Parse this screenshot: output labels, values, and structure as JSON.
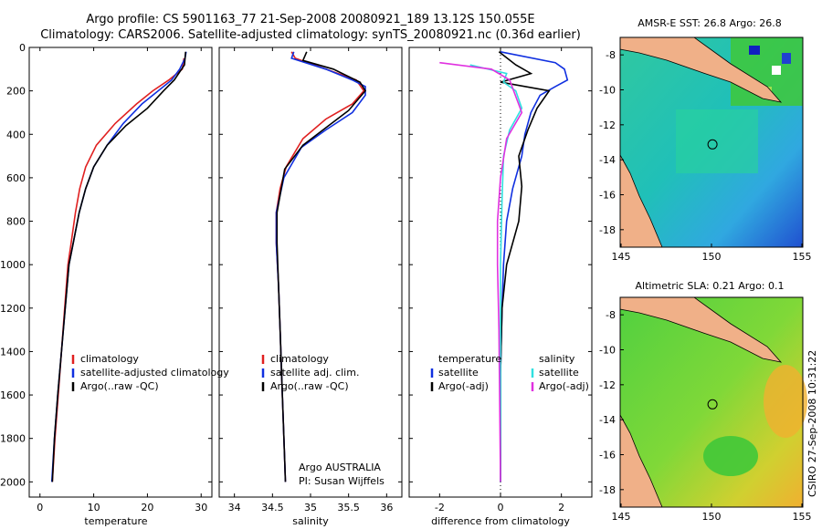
{
  "header": {
    "line1": "Argo profile: CS 5901163_77 21-Sep-2008 20080921_189 13.12S 150.055E",
    "line2": "Climatology: CARS2006. Satellite-adjusted climatology: synTS_20080921.nc (0.36d earlier)"
  },
  "side_label": "CSIRO 27-Sep-2008 10:31:22",
  "colors": {
    "clim": "#e02020",
    "sat": "#1030e0",
    "argo": "#000000",
    "cyan": "#30e0e0",
    "magenta": "#e030e0"
  },
  "chart_data": [
    {
      "id": "temperature",
      "type": "line",
      "xlabel": "temperature",
      "xlim": [
        -2,
        32
      ],
      "ylim": [
        2070,
        0
      ],
      "xticks": [
        0,
        10,
        20,
        30
      ],
      "yticks": [
        0,
        200,
        400,
        600,
        800,
        1000,
        1200,
        1400,
        1600,
        1800,
        2000
      ],
      "series": [
        {
          "name": "climatology",
          "color": "#e02020",
          "points": [
            [
              26.8,
              50
            ],
            [
              26.5,
              100
            ],
            [
              24,
              150
            ],
            [
              21,
              200
            ],
            [
              18,
              260
            ],
            [
              14,
              350
            ],
            [
              10.5,
              450
            ],
            [
              8.5,
              550
            ],
            [
              7.4,
              650
            ],
            [
              6.6,
              760
            ],
            [
              5.8,
              900
            ],
            [
              5.2,
              1000
            ],
            [
              4.6,
              1200
            ],
            [
              4,
              1400
            ],
            [
              3.4,
              1600
            ],
            [
              2.8,
              1800
            ],
            [
              2.3,
              2000
            ]
          ]
        },
        {
          "name": "satellite-adjusted climatology",
          "color": "#1030e0",
          "points": [
            [
              27.2,
              20
            ],
            [
              27,
              50
            ],
            [
              26,
              100
            ],
            [
              24.5,
              150
            ],
            [
              22,
              200
            ],
            [
              19,
              260
            ],
            [
              15.5,
              350
            ],
            [
              12.5,
              450
            ],
            [
              10,
              550
            ],
            [
              8.5,
              650
            ],
            [
              7.3,
              760
            ],
            [
              6.2,
              900
            ],
            [
              5.4,
              1000
            ],
            [
              4.7,
              1200
            ],
            [
              4,
              1400
            ],
            [
              3.3,
              1600
            ],
            [
              2.7,
              1800
            ],
            [
              2.2,
              2000
            ]
          ]
        },
        {
          "name": "Argo(..raw -QC)",
          "color": "#000000",
          "points": [
            [
              27.1,
              20
            ],
            [
              26.9,
              80
            ],
            [
              25,
              150
            ],
            [
              23,
              200
            ],
            [
              20,
              280
            ],
            [
              16,
              360
            ],
            [
              12.5,
              450
            ],
            [
              10,
              550
            ],
            [
              8.5,
              650
            ],
            [
              7.3,
              760
            ],
            [
              6.2,
              900
            ],
            [
              5.4,
              1000
            ],
            [
              4.7,
              1200
            ],
            [
              4,
              1400
            ],
            [
              3.3,
              1600
            ],
            [
              2.7,
              1800
            ],
            [
              2.3,
              2000
            ]
          ]
        }
      ],
      "legend": {
        "position": "bottom-right",
        "entries": [
          "climatology",
          "satellite-adjusted climatology",
          "Argo(..raw -QC)"
        ]
      }
    },
    {
      "id": "salinity",
      "type": "line",
      "xlabel": "salinity",
      "xlim": [
        33.8,
        36.2
      ],
      "ylim": [
        2070,
        0
      ],
      "xticks": [
        34,
        34.5,
        35,
        35.5,
        36
      ],
      "series": [
        {
          "name": "climatology",
          "color": "#e02020",
          "points": [
            [
              34.75,
              20
            ],
            [
              34.8,
              50
            ],
            [
              35.2,
              100
            ],
            [
              35.6,
              150
            ],
            [
              35.7,
              200
            ],
            [
              35.55,
              260
            ],
            [
              35.2,
              330
            ],
            [
              34.9,
              420
            ],
            [
              34.68,
              550
            ],
            [
              34.6,
              650
            ],
            [
              34.55,
              760
            ],
            [
              34.55,
              900
            ],
            [
              34.58,
              1100
            ],
            [
              34.6,
              1300
            ],
            [
              34.62,
              1500
            ],
            [
              34.64,
              1700
            ],
            [
              34.66,
              1900
            ],
            [
              34.67,
              2000
            ]
          ]
        },
        {
          "name": "satellite adj. clim.",
          "color": "#1030e0",
          "points": [
            [
              34.78,
              20
            ],
            [
              34.75,
              50
            ],
            [
              35.2,
              100
            ],
            [
              35.55,
              150
            ],
            [
              35.72,
              180
            ],
            [
              35.72,
              220
            ],
            [
              35.55,
              300
            ],
            [
              35.2,
              380
            ],
            [
              34.88,
              460
            ],
            [
              34.65,
              600
            ],
            [
              34.55,
              760
            ],
            [
              34.55,
              900
            ],
            [
              34.58,
              1100
            ],
            [
              34.6,
              1300
            ],
            [
              34.62,
              1500
            ],
            [
              34.64,
              1700
            ],
            [
              34.66,
              1900
            ],
            [
              34.67,
              2000
            ]
          ]
        },
        {
          "name": "Argo(..raw -QC)",
          "color": "#000000",
          "points": [
            [
              34.95,
              20
            ],
            [
              34.9,
              60
            ],
            [
              35.3,
              100
            ],
            [
              35.65,
              160
            ],
            [
              35.72,
              200
            ],
            [
              35.5,
              290
            ],
            [
              35.2,
              370
            ],
            [
              34.9,
              450
            ],
            [
              34.66,
              560
            ],
            [
              34.56,
              760
            ],
            [
              34.56,
              900
            ],
            [
              34.58,
              1100
            ],
            [
              34.6,
              1300
            ],
            [
              34.62,
              1500
            ],
            [
              34.64,
              1700
            ],
            [
              34.66,
              1900
            ],
            [
              34.67,
              2000
            ]
          ]
        }
      ],
      "legend": {
        "position": "bottom-right",
        "entries": [
          "climatology",
          "satellite adj. clim.",
          "Argo(..raw -QC)"
        ]
      },
      "annotation": [
        "Argo AUSTRALIA",
        "PI: Susan Wijffels"
      ]
    },
    {
      "id": "difference",
      "type": "line",
      "xlabel": "difference from climatology",
      "xlim": [
        -3,
        3
      ],
      "ylim": [
        2070,
        0
      ],
      "xticks": [
        -2,
        0,
        2
      ],
      "series": [
        {
          "name": "temperature satellite",
          "color": "#1030e0",
          "points": [
            [
              0,
              20
            ],
            [
              1.8,
              70
            ],
            [
              2.1,
              100
            ],
            [
              2.2,
              150
            ],
            [
              1.8,
              180
            ],
            [
              1.3,
              220
            ],
            [
              1.0,
              300
            ],
            [
              0.8,
              400
            ],
            [
              0.7,
              500
            ],
            [
              0.4,
              650
            ],
            [
              0.2,
              800
            ],
            [
              0.1,
              1000
            ],
            [
              0.05,
              1200
            ],
            [
              0,
              1500
            ],
            [
              0,
              2000
            ]
          ]
        },
        {
          "name": "temperature Argo(-adj)",
          "color": "#000000",
          "points": [
            [
              -0.05,
              20
            ],
            [
              0.5,
              80
            ],
            [
              1.0,
              120
            ],
            [
              0.0,
              160
            ],
            [
              1.6,
              200
            ],
            [
              1.2,
              280
            ],
            [
              0.9,
              380
            ],
            [
              0.6,
              500
            ],
            [
              0.7,
              640
            ],
            [
              0.6,
              800
            ],
            [
              0.2,
              1000
            ],
            [
              0.05,
              1200
            ],
            [
              0,
              1500
            ],
            [
              0,
              2000
            ]
          ]
        },
        {
          "name": "salinity satellite",
          "color": "#30e0e0",
          "points": [
            [
              -1.0,
              80
            ],
            [
              0.2,
              120
            ],
            [
              0.1,
              160
            ],
            [
              0.5,
              200
            ],
            [
              0.7,
              280
            ],
            [
              0.3,
              380
            ],
            [
              0.1,
              500
            ],
            [
              0.05,
              700
            ],
            [
              0,
              1000
            ],
            [
              0,
              2000
            ]
          ]
        },
        {
          "name": "salinity Argo(-adj)",
          "color": "#e030e0",
          "points": [
            [
              -2.0,
              70
            ],
            [
              -0.3,
              100
            ],
            [
              0.3,
              150
            ],
            [
              0.7,
              300
            ],
            [
              0.2,
              420
            ],
            [
              0,
              600
            ],
            [
              -0.1,
              800
            ],
            [
              -0.1,
              1000
            ],
            [
              -0.05,
              1300
            ],
            [
              0,
              2000
            ]
          ]
        }
      ],
      "legend": {
        "position": "bottom",
        "columns": [
          {
            "header": "temperature",
            "entries": [
              "satellite",
              "Argo(-adj)"
            ]
          },
          {
            "header": "salinity",
            "entries": [
              "satellite",
              "Argo(-adj)"
            ]
          }
        ]
      }
    },
    {
      "id": "sst-map",
      "type": "heatmap",
      "title": "AMSR-E SST: 26.8 Argo: 26.8",
      "xlim": [
        145,
        155
      ],
      "ylim": [
        -19,
        -7
      ],
      "xticks": [
        145,
        150,
        155
      ],
      "yticks": [
        -8,
        -10,
        -12,
        -14,
        -16,
        -18
      ],
      "marker": [
        150.055,
        -13.12
      ]
    },
    {
      "id": "sla-map",
      "type": "heatmap",
      "title": "Altimetric SLA: 0.21 Argo: 0.1",
      "xlim": [
        145,
        155
      ],
      "ylim": [
        -19,
        -7
      ],
      "xticks": [
        145,
        150,
        155
      ],
      "yticks": [
        -8,
        -10,
        -12,
        -14,
        -16,
        -18
      ],
      "marker": [
        150.055,
        -13.12
      ]
    }
  ]
}
